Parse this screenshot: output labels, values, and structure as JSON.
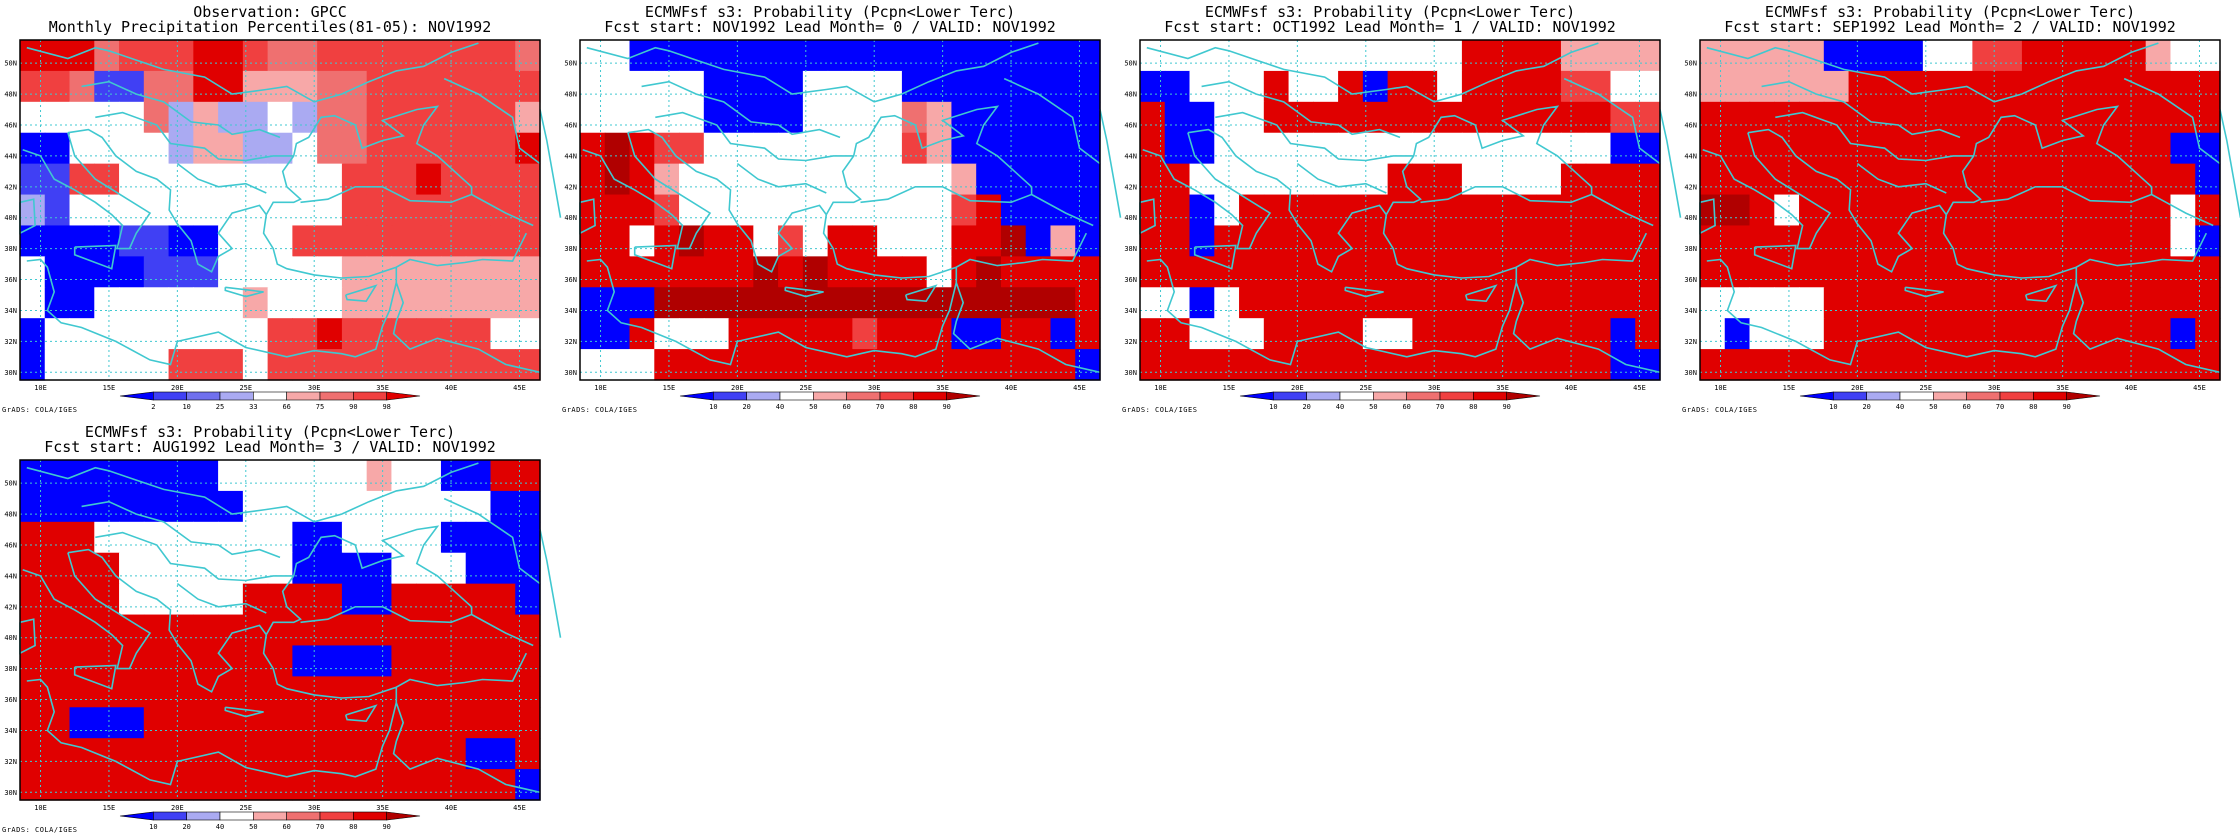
{
  "colors": {
    "dark_blue": "#0000ff",
    "blue": "#4040f4",
    "mid_blue": "#7070ee",
    "light_blue": "#aaaaf2",
    "white": "#ffffff",
    "pale_red": "#f7a8a8",
    "light_red": "#ef7070",
    "mid_red": "#f04040",
    "red": "#e00000",
    "dark_red": "#b00000",
    "coast": "#40c8d0",
    "grid": "#40c8d0"
  },
  "axes": {
    "lon_labels": [
      "10E",
      "15E",
      "20E",
      "25E",
      "30E",
      "35E",
      "40E",
      "45E"
    ],
    "lat_labels": [
      "30N",
      "32N",
      "34N",
      "36N",
      "38N",
      "40N",
      "42N",
      "44N",
      "46N",
      "48N",
      "50N"
    ],
    "lon_range": [
      8.5,
      46.5
    ],
    "lat_range": [
      29.5,
      51.5
    ]
  },
  "credit": "GrADS: COLA/IGES",
  "panels": [
    {
      "title1": "Observation: GPCC",
      "title2": "Monthly Precipitation Percentiles(81-05): NOV1992",
      "colorbar": [
        "2",
        "10",
        "25",
        "33",
        "66",
        "75",
        "90",
        "98"
      ],
      "cb_colors": [
        "dark_blue",
        "blue",
        "mid_blue",
        "light_blue",
        "white",
        "pale_red",
        "light_red",
        "mid_red",
        "red"
      ],
      "grid": [
        "RRRrmmmRRmrrmmmmmmmmr",
        "mmrbbrrRRppprrmmmmmmm",
        "WWWWWrlpllWlrrmmmmmmp",
        "BBWWWWlppllWrrmmmmmmR",
        "bbmmWWWWWWWWWmmmRmmmm",
        "lbWWWWWWWWWWWmmmmmmmm",
        "BBBBbbBBWWWmmmmmmmmmm",
        "WBBBBbbbWWWWWpppppppp",
        "WBBWWWWWWpWWWpppppppp",
        "BWWWWWWWWWmmRmmmmmmWW",
        "BWWWWWmmmWmmmmmmmmmmm"
      ]
    },
    {
      "title1": "ECMWFsf s3: Probability (Pcpn<Lower Terc)",
      "title2": "Fcst start: NOV1992  Lead Month= 0 / VALID: NOV1992",
      "colorbar": [
        "10",
        "20",
        "40",
        "50",
        "60",
        "70",
        "80",
        "90"
      ],
      "cb_colors": [
        "dark_blue",
        "blue",
        "light_blue",
        "white",
        "pale_red",
        "light_red",
        "mid_red",
        "red",
        "dark_red"
      ],
      "grid": [
        "WWBBBBBBBBBBBBBBBBBBB",
        "WWWWWBBBBWWWWBBBBBBBB",
        "WWWWWBBBBWWWWrpBBBBBB",
        "RDRmmWWWWWWWWmpBBBBBB",
        "RDRpWWWWWWWWWWWpBBBBB",
        "RRRmWWWWWWWWWWWmRBBBB",
        "RRWRDRRWmWRRWWWRRDBpB",
        "RRRRRRRDRDRRRRWRDRRRR",
        "BBBDDDDDDDDDDDDDDDDDR",
        "BBRWWWRRRRRmRRRBBRRBR",
        "WWWRRRRRRRRRRRRRRRRRB"
      ]
    },
    {
      "title1": "ECMWFsf s3: Probability (Pcpn<Lower Terc)",
      "title2": "Fcst start: OCT1992  Lead Month= 1 / VALID: NOV1992",
      "colorbar": [
        "10",
        "20",
        "40",
        "50",
        "60",
        "70",
        "80",
        "90"
      ],
      "cb_colors": [
        "dark_blue",
        "blue",
        "light_blue",
        "white",
        "pale_red",
        "light_red",
        "mid_red",
        "red",
        "dark_red"
      ],
      "grid": [
        "WWWWWWWWWWWWWRRRRpppp",
        "BBWWWRWWRBRRWRRRRmmWW",
        "RBBWWRRRRRRRRRRRRRRmm",
        "RBBWWWWWWWWWWWWWWWWBB",
        "RRWWWWWWWWRRRWWWWRRRR",
        "RRBWRRRRRRRRRRRRRRRRR",
        "RRBRRRRRRRRRRRRRRRRRR",
        "RRRRRRRRRRRRRRRRRRRRR",
        "WWBWRRRRRRRRRRRRRRRRR",
        "RRWWWRRRRWWRRRRRRRRBR",
        "RRRRRRRRRRRRRRRRRRRBB"
      ]
    },
    {
      "title1": "ECMWFsf s3: Probability (Pcpn<Lower Terc)",
      "title2": "Fcst start: SEP1992  Lead Month= 2 / VALID: NOV1992",
      "colorbar": [
        "10",
        "20",
        "40",
        "50",
        "60",
        "70",
        "80",
        "90"
      ],
      "cb_colors": [
        "dark_blue",
        "blue",
        "light_blue",
        "white",
        "pale_red",
        "light_red",
        "mid_red",
        "red",
        "dark_red"
      ],
      "grid": [
        "pppppBBBBWWmmRRRRRpWW",
        "ppppppRRRRRRRRRRRRRRR",
        "RRRRRRRRRRRRRRRRRRRRR",
        "RRRRRRRRRRRRRRRRRRRBB",
        "RRRRRRRRRRRRRRRRRRRRB",
        "DDRWRRRRRRRRRRRRRRRWR",
        "RRRRRRRRRRRRRRRRRRRWB",
        "RRRRRRRRRRRRRRRRRRRRR",
        "WWWWWRRRRRRRRRRRRRRRR",
        "WBWWWRRRRRRRRRRRRRRBR",
        "RRRRRRRRRRRRRRRRRRRRR"
      ]
    },
    {
      "title1": "ECMWFsf s3: Probability (Pcpn<Lower Terc)",
      "title2": "Fcst start: AUG1992  Lead Month= 3 / VALID: NOV1992",
      "colorbar": [
        "10",
        "20",
        "40",
        "50",
        "60",
        "70",
        "80",
        "90"
      ],
      "cb_colors": [
        "dark_blue",
        "blue",
        "light_blue",
        "white",
        "pale_red",
        "light_red",
        "mid_red",
        "red",
        "dark_red"
      ],
      "grid": [
        "BBBBBBBBWWWWWWpWWBBRR",
        "BBBBBBBBBWWWWWWWWWWBB",
        "RRRWWWWWWWWBBWWWWBBBB",
        "RRRRWWWWWWWBBBBWWWBBB",
        "RRRRWWWWWRRRRBBRRRRRB",
        "RRRRRRRRRRRRRRRRRRRRR",
        "RRRRRRRRRRRBBBBRRRRRR",
        "RRRRRRRRRRRRRRRRRRRRR",
        "RRBBBRRRRRRRRRRRRRRRR",
        "RRRRRRRRRRRRRRRRRRBBR",
        "RRRRRRRRRRRRRRRRRRRRB"
      ]
    }
  ]
}
